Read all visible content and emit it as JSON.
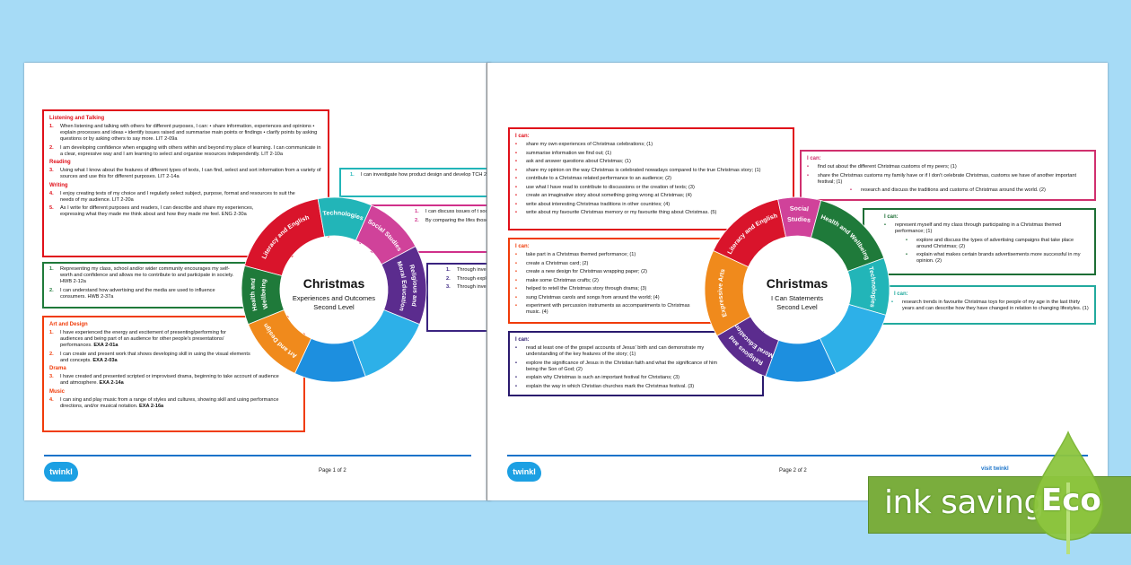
{
  "colors": {
    "background": "#a6dbf6",
    "red": "#d9142b",
    "pink": "#d0429a",
    "purple": "#5b2c8e",
    "teal": "#22b5b8",
    "blue_light": "#2db0e8",
    "blue": "#1d8fdf",
    "orange": "#f08a1c",
    "green": "#1f7a3a",
    "navy": "#2a1a6e",
    "eco_green": "#7aad3d"
  },
  "left": {
    "wheel": {
      "title": "Christmas",
      "subtitle1": "Experiences and Outcomes",
      "subtitle2": "Second Level",
      "labels": {
        "lit": [
          "Literacy and English"
        ],
        "tch": [
          "Technologies"
        ],
        "soc": [
          "Social Studies"
        ],
        "rme": [
          "Religious and",
          "Moral Education"
        ],
        "art": [
          "Art and Design"
        ],
        "hwb": [
          "Health and",
          "Wellbeing"
        ]
      }
    },
    "boxes": {
      "literacy": {
        "color": "#e0101a",
        "sections": [
          {
            "heading": "Listening and Talking",
            "items": [
              {
                "num": "1.",
                "text": "When listening and talking with others for different purposes, I can: • share information, experiences and opinions • explain processes and ideas • identify issues raised and summarise main points or findings • clarify points by asking questions or by asking others to say more. LIT 2-09a"
              },
              {
                "num": "2.",
                "text": "I am developing confidence when engaging with others within and beyond my place of learning. I can communicate in a clear, expressive way and I am learning to select and organise resources independently. LIT 2-10a"
              }
            ]
          },
          {
            "heading": "Reading",
            "items": [
              {
                "num": "3.",
                "text": "Using what I know about the features of different types of texts, I can find, select and sort information from a variety of sources and use this for different purposes. LIT 2-14a"
              }
            ]
          },
          {
            "heading": "Writing",
            "items": [
              {
                "num": "4.",
                "text": "I enjoy creating texts of my choice and I regularly select subject, purpose, format and resources to suit the needs of my audience. LIT 2-20a"
              },
              {
                "num": "5.",
                "text": "As I write for different purposes and readers, I can describe and share my experiences, expressing what they made me think about and how they made me feel. ENG 2-30a"
              }
            ]
          }
        ]
      },
      "health": {
        "color": "#1f7a3a",
        "sections": [
          {
            "items": [
              {
                "num": "1.",
                "text": "Representing my class, school and/or wider community encourages my self-worth and confidence and allows me to contribute to and participate in society. HWB 2-12a"
              },
              {
                "num": "2.",
                "text": "I can understand how advertising and the media are used to influence consumers. HWB 2-37a"
              }
            ]
          }
        ]
      },
      "arts": {
        "color": "#f03c0a",
        "sections": [
          {
            "heading": "Art and Design",
            "items": [
              {
                "num": "1.",
                "text": "I have experienced the energy and excitement of presenting/performing for audiences and being part of an audience for other people's presentations/ performances.",
                "code": "EXA 2-01a"
              },
              {
                "num": "2.",
                "text": "I can create and present work that shows developing skill in using the visual elements and concepts.",
                "code": "EXA 2-03a"
              }
            ]
          },
          {
            "heading": "Drama",
            "items": [
              {
                "num": "3.",
                "text": "I have created and presented scripted or improvised drama, beginning to take account of audience and atmosphere.",
                "code": "EXA 2-14a"
              }
            ]
          },
          {
            "heading": "Music",
            "items": [
              {
                "num": "4.",
                "text": "I can sing and play music from a range of styles and cultures, showing skill and using performance directions, and/or musical notation.",
                "code": "EXA 2-16a"
              }
            ]
          }
        ]
      },
      "technologies": {
        "color": "#22b5b8",
        "sections": [
          {
            "items": [
              {
                "num": "1.",
                "text": "I can investigate how product design and develop TCH 2-05a"
              }
            ]
          }
        ]
      },
      "social": {
        "color": "#d0308a",
        "sections": [
          {
            "items": [
              {
                "num": "1.",
                "text": "I can discuss issues of t society. SOC 2-16c"
              },
              {
                "num": "2.",
                "text": "By comparing the lifes those of Scotland, I can"
              }
            ]
          }
        ]
      },
      "rme": {
        "color": "#3a2380",
        "sections": [
          {
            "items": [
              {
                "num": "1.",
                "text": "Through investiga stories, I can show"
              },
              {
                "num": "2.",
                "text": "Through exploring in Christianity, I e Christian beliefs."
              },
              {
                "num": "3.",
                "text": "Through investiga events and times celebrations. RME"
              }
            ]
          }
        ]
      }
    },
    "footer": {
      "logo": "twinkl",
      "page": "Page 1 of 2"
    }
  },
  "right": {
    "wheel": {
      "title": "Christmas",
      "subtitle1": "I Can Statements",
      "subtitle2": "Second Level",
      "labels": {
        "lit": [
          "Literacy and English"
        ],
        "soc": [
          "Social",
          "Studies"
        ],
        "hwb": [
          "Health and Wellbeing"
        ],
        "tch": [
          "Technologies"
        ],
        "rme": [
          "Religious and",
          "Moral Education"
        ],
        "exa": [
          "Expressive Arts"
        ]
      }
    },
    "boxes": {
      "literacy": {
        "color": "#e0101a",
        "sections": [
          {
            "heading": "I can:",
            "items": [
              {
                "text": "share my own experiences of Christmas celebrations; (1)"
              },
              {
                "text": "summarise information we find out; (1)"
              },
              {
                "text": "ask and answer questions about Christmas; (1)"
              },
              {
                "text": "share my opinion on the way Christmas is celebrated nowadays compared to the true Christmas story; (1)"
              },
              {
                "text": "contribute to a Christmas related performance to an audience; (2)"
              },
              {
                "text": "use what I have read to contribute to discussions or the creation of texts; (3)"
              },
              {
                "text": "create an imaginative story about something going wrong at Christmas; (4)"
              },
              {
                "text": "write about interesting Christmas traditions in other countries; (4)"
              },
              {
                "text": "write about my favourite Christmas memory or my favourite thing about Christmas. (5)"
              }
            ]
          }
        ]
      },
      "arts": {
        "color": "#f03c0a",
        "sections": [
          {
            "heading": "I can:",
            "items": [
              {
                "text": "take part in a Christmas themed performance; (1)"
              },
              {
                "text": "create a Christmas card; (2)"
              },
              {
                "text": "create a new design for Christmas wrapping paper; (2)"
              },
              {
                "text": "make some Christmas crafts; (2)"
              },
              {
                "text": "helped to retell the Christmas story through drama; (3)"
              },
              {
                "text": "sung Christmas carols and songs from around the world; (4)"
              },
              {
                "text": "experiment with percussion instruments as accompaniments to Christmas music. (4)"
              }
            ]
          }
        ]
      },
      "rme": {
        "color": "#2a1a6e",
        "sections": [
          {
            "heading": "I can:",
            "items": [
              {
                "text": "read at least one of the gospel accounts of Jesus' birth and can demonstrate my understanding of the key features of the story; (1)"
              },
              {
                "text": "explore the significance of Jesus in the Christian faith and what the significance of him being the Son of God; (2)"
              },
              {
                "text": "explain why Christmas is such an important festival for Christians; (3)"
              },
              {
                "text": "explain the way in which Christian churches mark the Christmas festival. (3)"
              }
            ]
          }
        ]
      },
      "social": {
        "color": "#d0306e",
        "sections": [
          {
            "heading": "I can:",
            "items": [
              {
                "text": "find out about the different Christmas customs of my peers; (1)"
              },
              {
                "text": "share the Christmas customs my family have or if I don't celebrate Christmas, customs we have of another important festival; (1)"
              },
              {
                "text": "research and discuss the traditions and customs of Christmas around the world. (2)",
                "level": 3
              }
            ]
          }
        ]
      },
      "health": {
        "color": "#1d6e35",
        "sections": [
          {
            "heading": "I can:",
            "items": [
              {
                "text": "represent myself and my class through participating in a Christmas themed performance; (1)"
              },
              {
                "text": "explore and discuss the types of advertising campaigns that take place around Christmas; (2)",
                "level": 2
              },
              {
                "text": "explain what makes certain brands advertisements more successful in my opinion. (2)",
                "level": 2
              }
            ]
          }
        ]
      },
      "technologies": {
        "color": "#22aa9e",
        "sections": [
          {
            "heading": "I can:",
            "items": [
              {
                "text": "research trends in favourite Christmas toys for people of my age in the last thirty years and can describe how they have changed in relation to changing lifestyles. (1)"
              }
            ]
          }
        ]
      }
    },
    "footer": {
      "logo": "twinkl",
      "page": "Page 2 of 2",
      "visit": "visit twinkl"
    }
  },
  "eco_badge": {
    "text": "ink saving",
    "badge": "Eco"
  }
}
